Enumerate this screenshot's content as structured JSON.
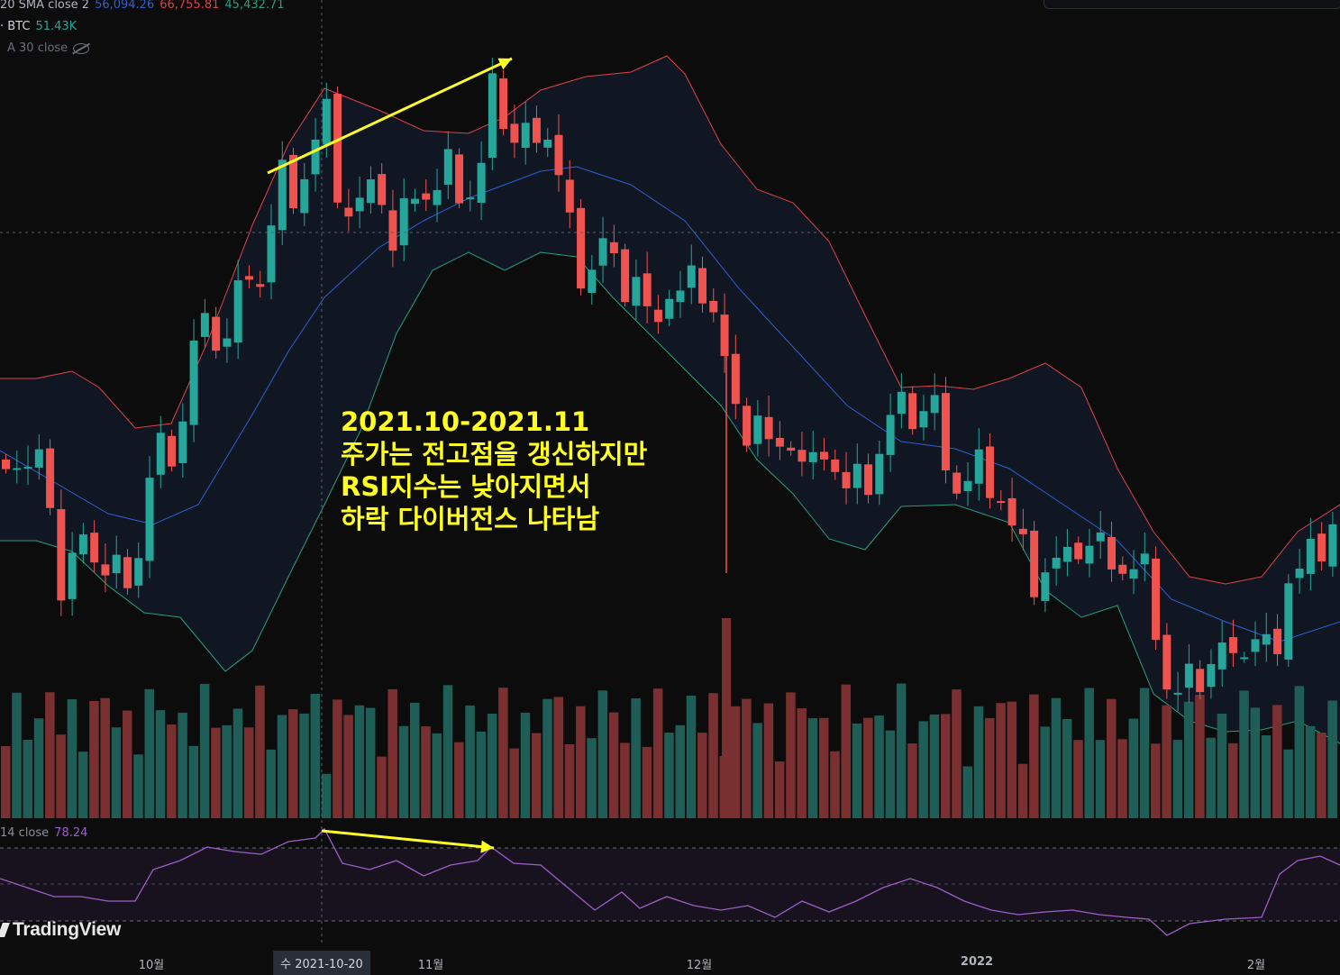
{
  "legend": {
    "bb_label": "20 SMA close 2",
    "bb_mid": "56,094.26",
    "bb_upper": "66,755.81",
    "bb_lower": "45,432.71",
    "vol_label": "· BTC",
    "vol_value": "51.43K",
    "ma_label": "A 30 close",
    "rsi_label": "14 close",
    "rsi_value": "78.24"
  },
  "annotation": {
    "line1": "2021.10-2021.11",
    "line2": "주가는 전고점을 갱신하지만",
    "line3": "RSI지수는 낮아지면서",
    "line4": "하락 다이버전스 나타남"
  },
  "brand": {
    "logo_text": "TradingView"
  },
  "xaxis": {
    "labels": [
      "10월",
      "11월",
      "12월",
      "2022",
      "2월"
    ],
    "crosshair": "수 2021-10-20"
  },
  "colors": {
    "up": "#26a69a",
    "down": "#ef5350",
    "bb_upper": "#e0404a",
    "bb_mid": "#2f5fd0",
    "bb_lower": "#2a9d7a",
    "rsi": "#9c5fc8",
    "arrow": "#ffff22"
  },
  "chart_data": [
    {
      "type": "candlestick",
      "title": "BTC",
      "x_start": "2021-09-13",
      "x_end": "2022-02-13",
      "indicator": "Bollinger Bands 20 SMA close 2",
      "last_values": {
        "basis": 56094.26,
        "upper": 66755.81,
        "lower": 45432.71
      },
      "trend_note": "higher high in price (2021-10-20 to 2021-11-10)"
    },
    {
      "type": "bar",
      "title": "Volume",
      "series": [
        {
          "name": "BTC",
          "last_value": "51.43K"
        }
      ]
    },
    {
      "type": "line",
      "title": "RSI 14 close",
      "ylim": [
        0,
        100
      ],
      "bands": [
        70,
        50,
        30
      ],
      "last_value": 78.24,
      "trend_note": "lower high in RSI (2021-10-20 to 2021-11-10)"
    }
  ]
}
